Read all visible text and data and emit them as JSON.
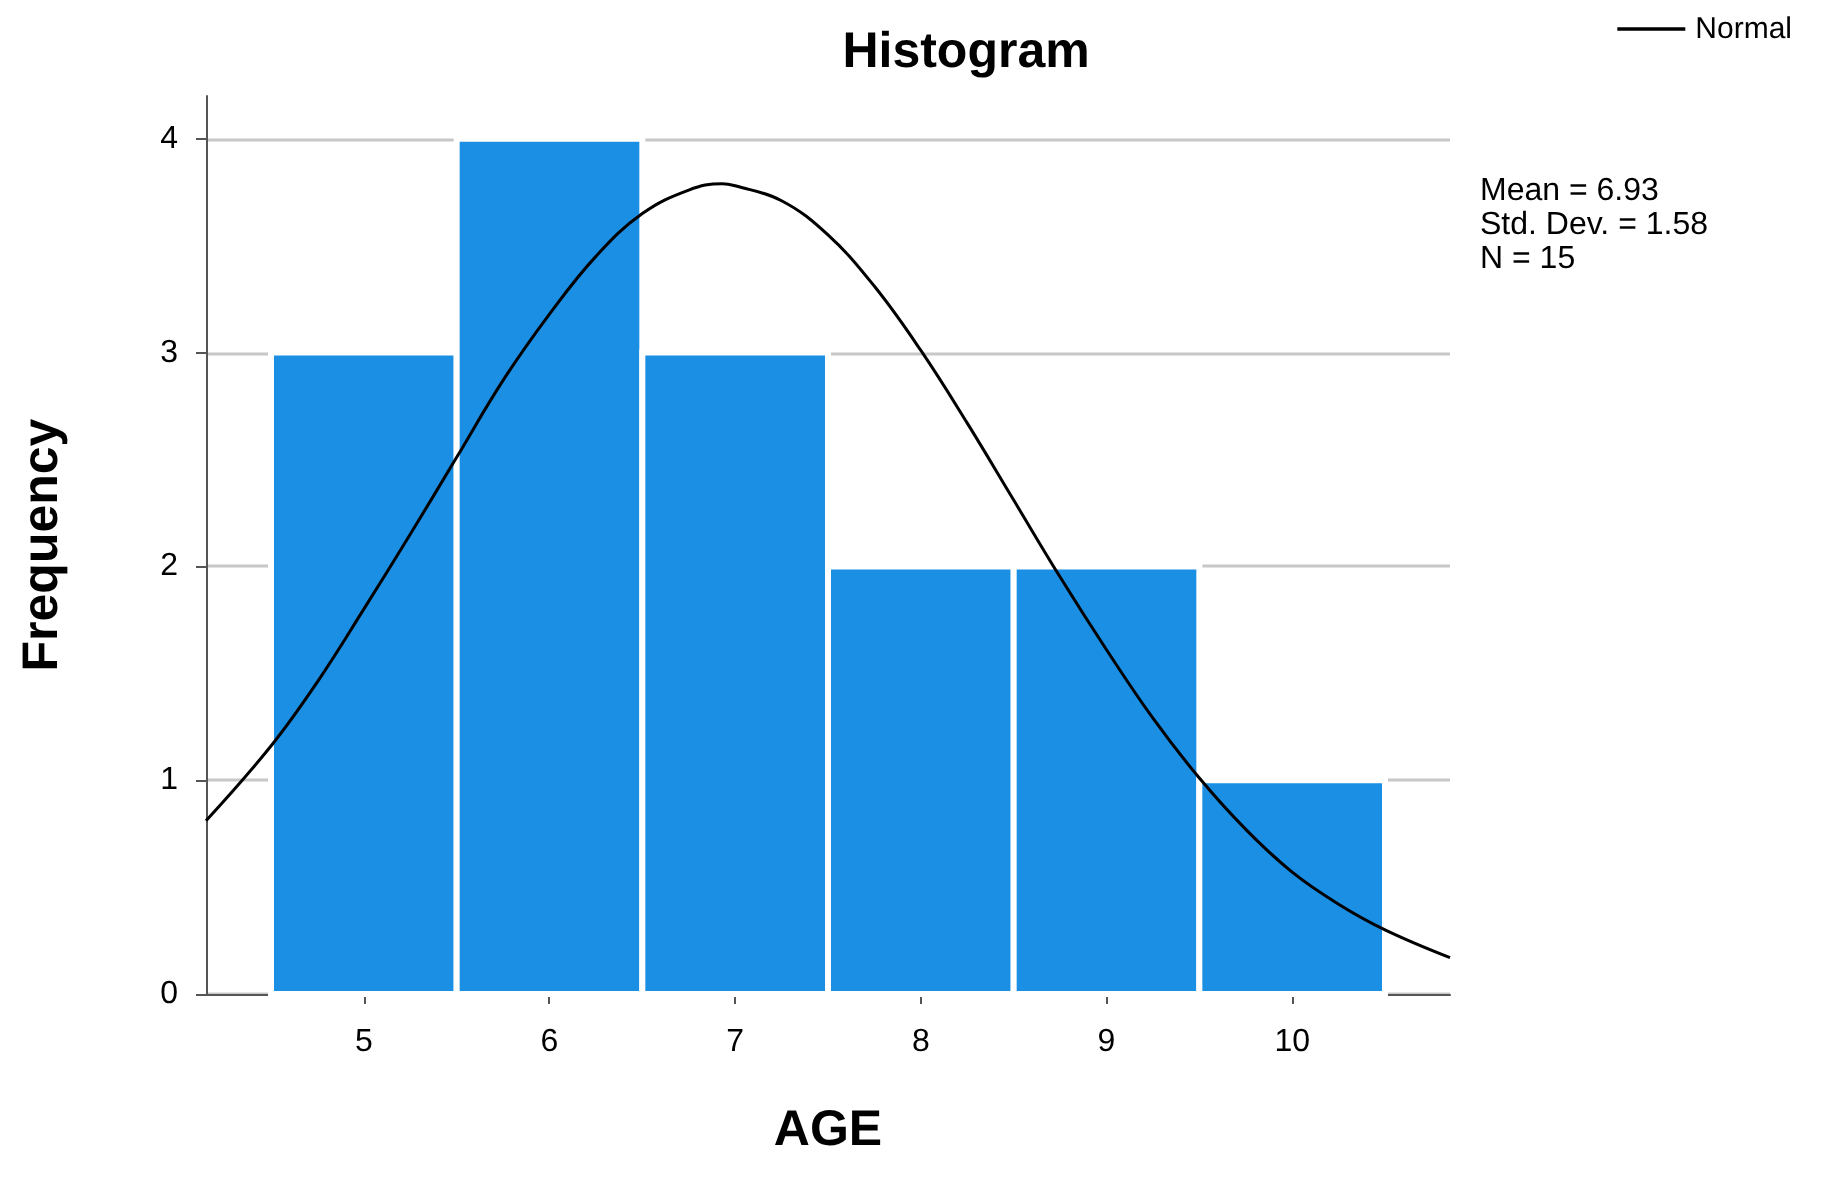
{
  "chart_data": {
    "type": "histogram",
    "title": "Histogram",
    "xlabel": "AGE",
    "ylabel": "Frequency",
    "bins": [
      4.5,
      5.5,
      6.5,
      7.5,
      8.5,
      9.5,
      10.5
    ],
    "values": [
      3,
      4,
      3,
      2,
      2,
      1
    ],
    "color": "#1a8fe3",
    "series": [
      {
        "name": "Normal",
        "type": "line",
        "color": "#000000",
        "x": [
          4.15,
          4.5,
          4.75,
          5,
          5.25,
          5.5,
          5.75,
          6,
          6.25,
          6.5,
          6.75,
          6.93,
          7,
          7.25,
          7.5,
          7.75,
          8,
          8.25,
          8.5,
          8.75,
          9,
          9.25,
          9.5,
          9.75,
          10,
          10.25,
          10.5,
          10.85
        ],
        "values": [
          0.81,
          1.16,
          1.46,
          1.8,
          2.15,
          2.51,
          2.87,
          3.18,
          3.45,
          3.65,
          3.76,
          3.79,
          3.78,
          3.71,
          3.55,
          3.31,
          3.01,
          2.67,
          2.31,
          1.95,
          1.61,
          1.29,
          1.01,
          0.77,
          0.57,
          0.42,
          0.3,
          0.17
        ]
      }
    ],
    "xlim": [
      4.15,
      10.85
    ],
    "xticks": [
      5,
      6,
      7,
      8,
      9,
      10
    ],
    "ylim": [
      0,
      4.2
    ],
    "yticks": [
      0,
      1,
      2,
      3,
      4
    ],
    "grid": "y",
    "legend": "top right",
    "marker": "none",
    "line_style": "solid",
    "annotations": [
      "Mean = 6.93",
      "Std. Dev. = 1.58",
      "N = 15"
    ]
  }
}
